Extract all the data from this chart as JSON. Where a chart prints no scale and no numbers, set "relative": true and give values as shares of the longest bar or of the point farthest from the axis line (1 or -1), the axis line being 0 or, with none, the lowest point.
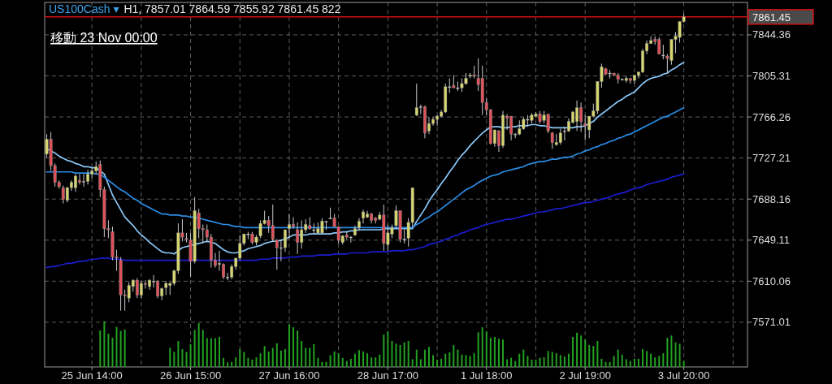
{
  "chart_data": [
    {
      "type": "candlestick",
      "title": "US100Cash ▾",
      "subtitle": "H1, 7857.01 7864.59 7855.92 7861.45 822",
      "annotations": [
        "移動 23 Nov 00:00"
      ],
      "categories": [
        null,
        null,
        null,
        null,
        null,
        null,
        null,
        null,
        null,
        null,
        null,
        "25 Jun 14:00",
        null,
        null,
        null,
        null,
        null,
        null,
        null,
        null,
        null,
        null,
        null,
        null,
        null,
        null,
        null,
        null,
        null,
        null,
        null,
        null,
        null,
        null,
        null,
        "26 Jun 15:00",
        null,
        null,
        null,
        null,
        null,
        null,
        null,
        null,
        null,
        null,
        null,
        null,
        null,
        null,
        null,
        null,
        null,
        null,
        null,
        null,
        null,
        null,
        null,
        "27 Jun 16:00",
        null,
        null,
        null,
        null,
        null,
        null,
        null,
        null,
        null,
        null,
        null,
        null,
        null,
        null,
        null,
        null,
        null,
        null,
        null,
        null,
        null,
        null,
        null,
        "28 Jun 17:00",
        null,
        null,
        null,
        null,
        null,
        null,
        null,
        null,
        null,
        null,
        null,
        null,
        null,
        null,
        null,
        null,
        null,
        null,
        null,
        null,
        null,
        null,
        null,
        "1 Jul 18:00",
        null,
        null,
        null,
        null,
        null,
        null,
        null,
        null,
        null,
        null,
        null,
        null,
        null,
        null,
        null,
        null,
        null,
        null,
        null,
        null,
        null,
        null,
        null,
        "2 Jul 19:00",
        null,
        null,
        null,
        null,
        null,
        null,
        null,
        null,
        null,
        null,
        null,
        null,
        null,
        null,
        null,
        null,
        null,
        null,
        null,
        null,
        null,
        null,
        null,
        "3 Jul 20:00"
      ],
      "ohlc": [
        [
          7731,
          7750,
          7728,
          7745
        ],
        [
          7745,
          7752,
          7715,
          7720
        ],
        [
          7720,
          7722,
          7700,
          7704
        ],
        [
          7704,
          7706,
          7698,
          7700
        ],
        [
          7699,
          7701,
          7684,
          7688
        ],
        [
          7687,
          7700,
          7685,
          7699
        ],
        [
          7699,
          7706,
          7696,
          7704
        ],
        [
          7699,
          7712,
          7695,
          7710
        ],
        [
          7706,
          7712,
          7702,
          7704
        ],
        [
          7705,
          7712,
          7700,
          7705
        ],
        [
          7705,
          7716,
          7702,
          7712
        ],
        [
          7712,
          7718,
          7708,
          7715
        ],
        [
          7715,
          7724,
          7712,
          7719
        ],
        [
          7721,
          7725,
          7690,
          7697
        ],
        [
          7697,
          7700,
          7652,
          7660
        ],
        [
          7660,
          7668,
          7651,
          7659
        ],
        [
          7657,
          7662,
          7630,
          7633
        ],
        [
          7633,
          7640,
          7620,
          7632
        ],
        [
          7630,
          7633,
          7582,
          7597
        ],
        [
          7597,
          7602,
          7582,
          7596
        ],
        [
          7594,
          7609,
          7590,
          7606
        ],
        [
          7605,
          7612,
          7600,
          7611
        ],
        [
          7611,
          7613,
          7594,
          7597
        ],
        [
          7597,
          7610,
          7594,
          7608
        ],
        [
          7608,
          7611,
          7603,
          7607
        ],
        [
          7605,
          7612,
          7602,
          7611
        ],
        [
          7610,
          7616,
          7604,
          7610
        ],
        [
          7610,
          7611,
          7594,
          7596
        ],
        [
          7596,
          7604,
          7592,
          7603
        ],
        [
          7604,
          7610,
          7597,
          7608
        ],
        [
          7606,
          7609,
          7597,
          7608
        ],
        [
          7608,
          7621,
          7606,
          7620
        ],
        [
          7620,
          7665,
          7617,
          7656
        ],
        [
          7656,
          7669,
          7648,
          7652
        ],
        [
          7651,
          7656,
          7647,
          7650
        ],
        [
          7649,
          7656,
          7614,
          7629
        ],
        [
          7629,
          7690,
          7627,
          7677
        ],
        [
          7675,
          7679,
          7651,
          7660
        ],
        [
          7660,
          7664,
          7646,
          7659
        ],
        [
          7659,
          7664,
          7647,
          7652
        ],
        [
          7652,
          7655,
          7623,
          7630
        ],
        [
          7630,
          7637,
          7623,
          7625
        ],
        [
          7626,
          7639,
          7620,
          7627
        ],
        [
          7626,
          7627,
          7612,
          7614
        ],
        [
          7614,
          7618,
          7611,
          7614
        ],
        [
          7614,
          7626,
          7612,
          7624
        ],
        [
          7624,
          7632,
          7621,
          7632
        ],
        [
          7632,
          7654,
          7630,
          7646
        ],
        [
          7646,
          7655,
          7644,
          7655
        ],
        [
          7655,
          7657,
          7650,
          7655
        ],
        [
          7655,
          7657,
          7645,
          7647
        ],
        [
          7647,
          7654,
          7644,
          7652
        ],
        [
          7653,
          7668,
          7651,
          7665
        ],
        [
          7665,
          7677,
          7664,
          7668
        ],
        [
          7668,
          7672,
          7656,
          7663
        ],
        [
          7663,
          7683,
          7648,
          7650
        ],
        [
          7649,
          7650,
          7621,
          7642
        ],
        [
          7642,
          7649,
          7629,
          7642
        ],
        [
          7642,
          7659,
          7638,
          7659
        ],
        [
          7660,
          7674,
          7651,
          7664
        ],
        [
          7664,
          7671,
          7660,
          7662
        ],
        [
          7659,
          7666,
          7636,
          7647
        ],
        [
          7647,
          7668,
          7641,
          7659
        ],
        [
          7659,
          7669,
          7656,
          7664
        ],
        [
          7663,
          7671,
          7659,
          7660
        ],
        [
          7659,
          7665,
          7655,
          7659
        ],
        [
          7656,
          7666,
          7655,
          7660
        ],
        [
          7656,
          7670,
          7655,
          7667
        ],
        [
          7667,
          7667,
          7659,
          7667
        ],
        [
          7670,
          7680,
          7669,
          7670
        ],
        [
          7670,
          7674,
          7662,
          7662
        ],
        [
          7662,
          7662,
          7646,
          7649
        ],
        [
          7647,
          7654,
          7645,
          7653
        ],
        [
          7654,
          7657,
          7650,
          7652
        ],
        [
          7652,
          7653,
          7647,
          7652
        ],
        [
          7654,
          7663,
          7653,
          7660
        ],
        [
          7661,
          7670,
          7658,
          7667
        ],
        [
          7670,
          7678,
          7665,
          7676
        ],
        [
          7671,
          7677,
          7670,
          7674
        ],
        [
          7674,
          7675,
          7665,
          7668
        ],
        [
          7670,
          7671,
          7665,
          7668
        ],
        [
          7669,
          7676,
          7668,
          7673
        ],
        [
          7673,
          7683,
          7639,
          7646
        ],
        [
          7645,
          7664,
          7639,
          7656
        ],
        [
          7655,
          7664,
          7651,
          7661
        ],
        [
          7663,
          7682,
          7660,
          7677
        ],
        [
          7677,
          7677,
          7647,
          7650
        ],
        [
          7650,
          7659,
          7646,
          7650
        ],
        [
          7651,
          7670,
          7643,
          7666
        ],
        [
          7666,
          7699,
          7661,
          7699
        ],
        [
          7768,
          7798,
          7767,
          7775
        ],
        [
          7776,
          7778,
          7769,
          7776
        ],
        [
          7776,
          7777,
          7746,
          7751
        ],
        [
          7753,
          7766,
          7750,
          7760
        ],
        [
          7760,
          7766,
          7758,
          7764
        ],
        [
          7764,
          7768,
          7758,
          7767
        ],
        [
          7767,
          7773,
          7766,
          7771
        ],
        [
          7771,
          7798,
          7770,
          7795
        ],
        [
          7795,
          7803,
          7789,
          7795
        ],
        [
          7796,
          7806,
          7794,
          7794
        ],
        [
          7794,
          7800,
          7791,
          7794
        ],
        [
          7794,
          7803,
          7790,
          7798
        ],
        [
          7798,
          7808,
          7797,
          7803
        ],
        [
          7805,
          7808,
          7803,
          7806
        ],
        [
          7806,
          7815,
          7803,
          7805
        ],
        [
          7803,
          7822,
          7791,
          7797
        ],
        [
          7803,
          7815,
          7768,
          7780
        ],
        [
          7780,
          7784,
          7768,
          7773
        ],
        [
          7773,
          7774,
          7740,
          7741
        ],
        [
          7741,
          7754,
          7738,
          7754
        ],
        [
          7753,
          7754,
          7733,
          7739
        ],
        [
          7739,
          7772,
          7737,
          7768
        ],
        [
          7767,
          7769,
          7754,
          7765
        ],
        [
          7767,
          7767,
          7744,
          7750
        ],
        [
          7750,
          7751,
          7746,
          7750
        ],
        [
          7750,
          7763,
          7749,
          7755
        ],
        [
          7755,
          7766,
          7754,
          7764
        ],
        [
          7764,
          7768,
          7757,
          7764
        ],
        [
          7763,
          7770,
          7760,
          7768
        ],
        [
          7767,
          7771,
          7766,
          7769
        ],
        [
          7769,
          7772,
          7760,
          7762
        ],
        [
          7763,
          7772,
          7760,
          7768
        ],
        [
          7769,
          7769,
          7751,
          7753
        ],
        [
          7751,
          7752,
          7736,
          7742
        ],
        [
          7740,
          7750,
          7739,
          7742
        ],
        [
          7742,
          7755,
          7740,
          7751
        ],
        [
          7753,
          7757,
          7744,
          7753
        ],
        [
          7753,
          7765,
          7752,
          7762
        ],
        [
          7761,
          7772,
          7760,
          7771
        ],
        [
          7762,
          7782,
          7753,
          7775
        ],
        [
          7775,
          7780,
          7752,
          7762
        ],
        [
          7760,
          7768,
          7744,
          7758
        ],
        [
          7754,
          7767,
          7746,
          7767
        ],
        [
          7767,
          7779,
          7766,
          7772
        ],
        [
          7772,
          7800,
          7769,
          7800
        ],
        [
          7800,
          7817,
          7794,
          7814
        ],
        [
          7812,
          7813,
          7806,
          7807
        ],
        [
          7808,
          7811,
          7803,
          7808
        ],
        [
          7808,
          7808,
          7805,
          7806
        ],
        [
          7806,
          7808,
          7798,
          7802
        ],
        [
          7802,
          7803,
          7801,
          7802
        ],
        [
          7801,
          7805,
          7799,
          7803
        ],
        [
          7803,
          7803,
          7798,
          7801
        ],
        [
          7801,
          7806,
          7798,
          7806
        ],
        [
          7806,
          7809,
          7803,
          7809
        ],
        [
          7809,
          7831,
          7808,
          7829
        ],
        [
          7829,
          7839,
          7826,
          7836
        ],
        [
          7836,
          7843,
          7836,
          7839
        ],
        [
          7840,
          7843,
          7835,
          7838
        ],
        [
          7840,
          7842,
          7826,
          7826
        ],
        [
          7825,
          7835,
          7821,
          7825
        ],
        [
          7824,
          7826,
          7808,
          7822
        ],
        [
          7820,
          7840,
          7816,
          7840
        ],
        [
          7840,
          7847,
          7827,
          7843
        ],
        [
          7842,
          7857,
          7837,
          7857
        ],
        [
          7857.01,
          7864.59,
          7855.92,
          7861.45
        ]
      ],
      "series": [
        {
          "type": "line",
          "color": "#8cc8f8",
          "values": [
            7736,
            7734,
            7732,
            7729,
            7727,
            7725,
            7724,
            7722,
            7721,
            7719,
            7719,
            7718,
            7718,
            7715,
            7712,
            7702,
            7692,
            7685,
            7678,
            7671,
            7667,
            7663,
            7658,
            7654,
            7651,
            7647,
            7644,
            7641,
            7638,
            7637,
            7637,
            7636,
            7639,
            7642,
            7643,
            7644,
            7645,
            7646,
            7647,
            7648,
            7647,
            7646,
            7643,
            7640,
            7638,
            7637,
            7637,
            7638,
            7639,
            7641,
            7642,
            7643,
            7644,
            7646,
            7647,
            7648,
            7648,
            7649,
            7650,
            7652,
            7654,
            7654,
            7654,
            7654,
            7655,
            7655,
            7655,
            7655,
            7655,
            7655,
            7656,
            7656,
            7657,
            7657,
            7658,
            7658,
            7659,
            7659,
            7659,
            7659,
            7659,
            7659,
            7660,
            7660,
            7660,
            7660,
            7660,
            7660,
            7660,
            7660,
            7667,
            7673,
            7679,
            7686,
            7692,
            7697,
            7703,
            7708,
            7714,
            7719,
            7725,
            7730,
            7734,
            7739,
            7743,
            7747,
            7751,
            7754,
            7757,
            7757,
            7757,
            7756,
            7756,
            7757,
            7757,
            7758,
            7758,
            7758,
            7759,
            7759,
            7758,
            7758,
            7757,
            7756,
            7756,
            7756,
            7756,
            7756,
            7756,
            7757,
            7757,
            7758,
            7760,
            7762,
            7766,
            7769,
            7772,
            7775,
            7778,
            7781,
            7783,
            7786,
            7788,
            7790,
            7794,
            7798,
            7801,
            7803,
            7804,
            7805,
            7807,
            7808,
            7811,
            7813,
            7816,
            7818
          ]
        },
        {
          "type": "line",
          "color": "#2a8ce4",
          "values": [
            7714,
            7714,
            7714,
            7714,
            7714,
            7714,
            7714,
            7713,
            7713,
            7713,
            7713,
            7713,
            7712,
            7712,
            7709,
            7706,
            7703,
            7700,
            7697,
            7695,
            7692,
            7689,
            7687,
            7684,
            7682,
            7680,
            7678,
            7676,
            7674,
            7674,
            7673,
            7673,
            7673,
            7672,
            7672,
            7671,
            7671,
            7670,
            7669,
            7668,
            7667,
            7666,
            7665,
            7664,
            7664,
            7663,
            7662,
            7662,
            7661,
            7661,
            7661,
            7661,
            7661,
            7661,
            7661,
            7661,
            7661,
            7661,
            7661,
            7661,
            7661,
            7661,
            7661,
            7661,
            7661,
            7661,
            7661,
            7661,
            7661,
            7661,
            7661,
            7661,
            7661,
            7661,
            7661,
            7661,
            7661,
            7661,
            7661,
            7661,
            7661,
            7661,
            7661,
            7661,
            7661,
            7661,
            7661,
            7661,
            7661,
            7661,
            7664,
            7666,
            7669,
            7671,
            7674,
            7676,
            7679,
            7682,
            7685,
            7688,
            7691,
            7694,
            7697,
            7699,
            7701,
            7704,
            7706,
            7708,
            7710,
            7711,
            7712,
            7714,
            7715,
            7716,
            7717,
            7718,
            7719,
            7721,
            7722,
            7723,
            7724,
            7724,
            7725,
            7726,
            7726,
            7727,
            7728,
            7728,
            7729,
            7731,
            7732,
            7734,
            7735,
            7737,
            7738,
            7740,
            7741,
            7743,
            7744,
            7746,
            7747,
            7749,
            7750,
            7752,
            7754,
            7756,
            7758,
            7760,
            7762,
            7764,
            7766,
            7767,
            7769,
            7771,
            7773,
            7775
          ]
        },
        {
          "type": "line",
          "color": "#1c1cd0",
          "values": [
            7623,
            7624,
            7624,
            7625,
            7626,
            7627,
            7627,
            7628,
            7629,
            7629,
            7630,
            7631,
            7631,
            7632,
            7632,
            7632,
            7631,
            7631,
            7631,
            7630,
            7630,
            7630,
            7630,
            7630,
            7630,
            7630,
            7630,
            7630,
            7630,
            7630,
            7630,
            7630,
            7630,
            7630,
            7630,
            7630,
            7630,
            7630,
            7630,
            7630,
            7630,
            7630,
            7630,
            7630,
            7630,
            7630,
            7630,
            7630,
            7630,
            7630,
            7630,
            7630,
            7631,
            7631,
            7631,
            7632,
            7632,
            7632,
            7632,
            7633,
            7633,
            7633,
            7634,
            7634,
            7634,
            7634,
            7635,
            7635,
            7635,
            7635,
            7636,
            7636,
            7636,
            7636,
            7637,
            7637,
            7637,
            7637,
            7637,
            7638,
            7638,
            7638,
            7638,
            7638,
            7639,
            7639,
            7639,
            7639,
            7640,
            7640,
            7641,
            7642,
            7643,
            7645,
            7646,
            7647,
            7648,
            7650,
            7651,
            7653,
            7654,
            7656,
            7657,
            7659,
            7660,
            7661,
            7663,
            7664,
            7665,
            7666,
            7667,
            7668,
            7669,
            7669,
            7670,
            7671,
            7672,
            7673,
            7674,
            7675,
            7676,
            7676,
            7677,
            7678,
            7679,
            7679,
            7680,
            7681,
            7682,
            7683,
            7684,
            7685,
            7685,
            7686,
            7687,
            7688,
            7689,
            7690,
            7692,
            7693,
            7694,
            7695,
            7697,
            7698,
            7699,
            7700,
            7702,
            7703,
            7704,
            7705,
            7706,
            7707,
            7709,
            7710,
            7711,
            7712
          ]
        }
      ],
      "ylim": [
        7528.5,
        7875.2
      ],
      "yticks": [
        7571.01,
        7610.06,
        7649.11,
        7688.16,
        7727.21,
        7766.26,
        7805.31,
        7844.36
      ],
      "grid": true,
      "ref_lines": [
        {
          "axis": "y",
          "value": 7861.45,
          "label": "7861.45",
          "color": "#d01010"
        }
      ]
    },
    {
      "type": "bar",
      "relative": true,
      "color": "#22a022",
      "categories": [
        null,
        null,
        null,
        null,
        null,
        null,
        null,
        null,
        null,
        null,
        null,
        null,
        null,
        null,
        null,
        null,
        null,
        null,
        null,
        null,
        null,
        null,
        null,
        null,
        null,
        null,
        null,
        null,
        null,
        null,
        null,
        null,
        null,
        null,
        null,
        null,
        null,
        null,
        null,
        null,
        null,
        null,
        null,
        null,
        null,
        null,
        null,
        null,
        null,
        null,
        null,
        null,
        null,
        null,
        null,
        null,
        null,
        null,
        null,
        null,
        null,
        null,
        null,
        null,
        null,
        null,
        null,
        null,
        null,
        null,
        null,
        null,
        null,
        null,
        null,
        null,
        null,
        null,
        null,
        null,
        null,
        null,
        null,
        null,
        null,
        null,
        null,
        null,
        null,
        null,
        null,
        null,
        null,
        null,
        null,
        null,
        null,
        null,
        null,
        null,
        null,
        null,
        null,
        null,
        null,
        null,
        null,
        null,
        null,
        null,
        null,
        null,
        null,
        null,
        null,
        null,
        null,
        null,
        null,
        null,
        null,
        null,
        null,
        null,
        null,
        null,
        null,
        null,
        null,
        null,
        null,
        null,
        null,
        null,
        null,
        null,
        null,
        null,
        null,
        null,
        null,
        null,
        null,
        null,
        null,
        null,
        null,
        null,
        null,
        null,
        null,
        null,
        null,
        null,
        null,
        null
      ],
      "values": [
        null,
        null,
        null,
        null,
        null,
        null,
        null,
        null,
        null,
        null,
        null,
        null,
        null,
        0.8,
        1,
        0.73,
        0.64,
        0.88,
        0.79,
        0.82,
        null,
        null,
        null,
        null,
        null,
        null,
        null,
        null,
        null,
        null,
        0.42,
        0.33,
        0.57,
        0.39,
        0.33,
        0.5,
        0.81,
        0.96,
        0.81,
        0.63,
        0.63,
        0.63,
        0.66,
        0.2,
        0.1,
        0.11,
        0.21,
        0.39,
        0.33,
        0.2,
        0.16,
        0.21,
        0.3,
        0.46,
        0.34,
        0.42,
        0.52,
        0.36,
        0.39,
        0.94,
        0.87,
        0.8,
        0.57,
        0.42,
        0.42,
        0.5,
        0.2,
        0.11,
        0.11,
        0.26,
        0.34,
        0.3,
        0.2,
        0.13,
        0.18,
        0.29,
        0.37,
        0.34,
        0.3,
        0.21,
        0.21,
        0.27,
        0.71,
        0.78,
        0.57,
        0.51,
        0.48,
        0.54,
        0.57,
        0.17,
        0.38,
        0.17,
        0.38,
        0.44,
        0.26,
        0.16,
        0.18,
        0.29,
        0.32,
        0.48,
        0.38,
        0.27,
        0.26,
        0.24,
        0.3,
        0.76,
        0.87,
        0.78,
        0.64,
        0.66,
        0.62,
        0.6,
        0.17,
        0.2,
        0.13,
        0.29,
        0.38,
        0.24,
        0.16,
        0.16,
        0.2,
        0.21,
        0.35,
        0.33,
        0.3,
        0.26,
        0.23,
        0.29,
        0.66,
        0.75,
        0.69,
        0.6,
        0.48,
        0.46,
        0.57,
        0.18,
        0.11,
        0.11,
        0.24,
        0.38,
        0.27,
        0.17,
        0.13,
        0.18,
        0.18,
        0.39,
        0.35,
        0.29,
        0.21,
        0.24,
        0.3,
        0.64,
        0.69,
        0.54,
        0.51,
        0.13
      ]
    }
  ]
}
